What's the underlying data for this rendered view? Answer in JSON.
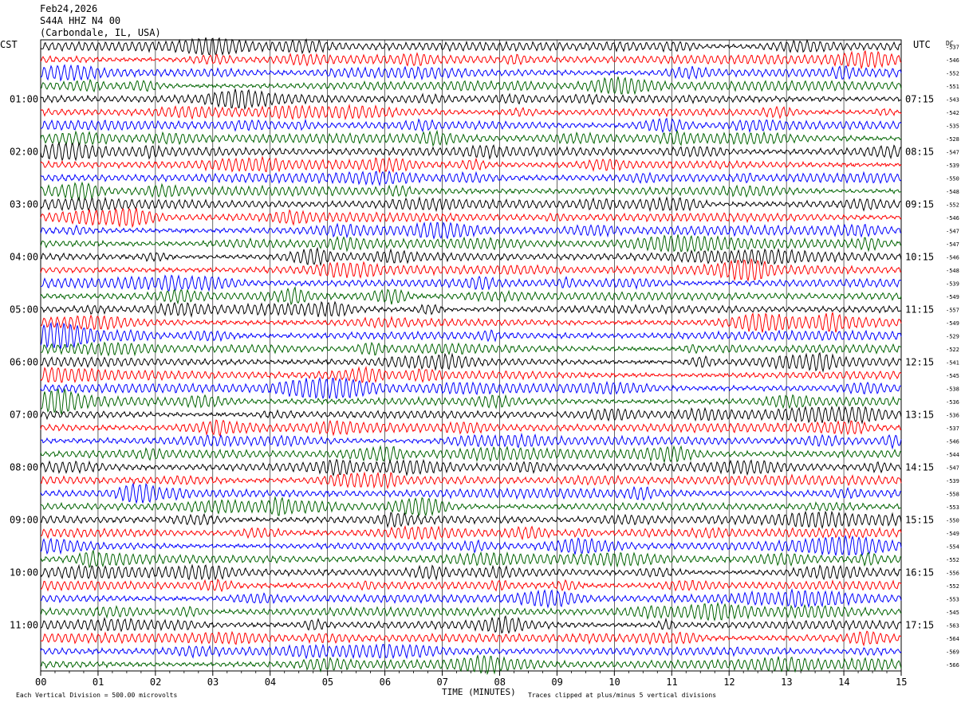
{
  "header": {
    "date": "Feb24,2026",
    "station": "S44A HHZ N4 00",
    "location": "(Carbondale, IL, USA)"
  },
  "labels": {
    "left_tz": "CST",
    "right_tz": "UTC",
    "dc": "DC",
    "x_title": "TIME (MINUTES)",
    "scale_note": "Each Vertical Division =  500.00 microvolts",
    "clip_note": "Traces clipped at plus/minus 5 vertical divisions"
  },
  "chart_data": {
    "type": "line",
    "title": "S44A HHZ N4 00",
    "xlabel": "TIME (MINUTES)",
    "x_ticks": [
      "00",
      "01",
      "02",
      "03",
      "04",
      "05",
      "06",
      "07",
      "08",
      "09",
      "10",
      "11",
      "12",
      "13",
      "14",
      "15"
    ],
    "xlim": [
      0,
      15
    ],
    "trace_minutes": 15,
    "trace_colors": [
      "#000000",
      "#ff0000",
      "#0000ff",
      "#006400"
    ],
    "left_hour_labels": [
      "01:00",
      "02:00",
      "03:00",
      "04:00",
      "05:00",
      "06:00",
      "07:00",
      "08:00",
      "09:00",
      "10:00",
      "11:00"
    ],
    "right_hour_labels": [
      "07:15",
      "08:15",
      "09:15",
      "10:15",
      "11:15",
      "12:15",
      "13:15",
      "14:15",
      "15:15",
      "16:15",
      "17:15"
    ],
    "dc_offsets": [
      -537,
      -546,
      -552,
      -551,
      -543,
      -542,
      -535,
      -528,
      -547,
      -539,
      -550,
      -548,
      -552,
      -546,
      -547,
      -547,
      -546,
      -548,
      -539,
      -549,
      -557,
      -549,
      -529,
      -522,
      -541,
      -545,
      -538,
      -536,
      -536,
      -537,
      -546,
      -544,
      -547,
      -539,
      -558,
      -553,
      -550,
      -549,
      -554,
      -552,
      -556,
      -552,
      -553,
      -545,
      -563,
      -564,
      -569,
      -566
    ],
    "trace_count": 48
  }
}
